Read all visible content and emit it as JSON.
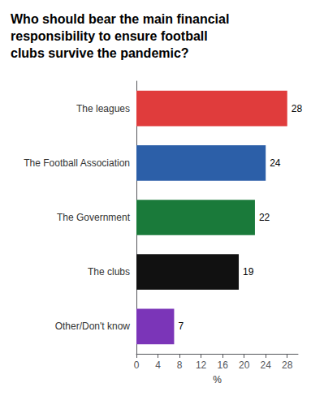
{
  "chart_data": {
    "type": "bar",
    "title": "Who should bear the main financial\nresponsibility to ensure football\nclubs survive the pandemic?",
    "categories": [
      "The leagues",
      "The Football Association",
      "The Government",
      "The clubs",
      "Other/Don't know"
    ],
    "values": [
      28,
      24,
      22,
      19,
      7
    ],
    "colors": [
      "#e03c3c",
      "#2c5fa8",
      "#1a7a3a",
      "#111111",
      "#7b35b8"
    ],
    "xlabel": "%",
    "xlim": [
      0,
      30
    ],
    "xticks": [
      0,
      4,
      8,
      12,
      16,
      20,
      24,
      28
    ],
    "orientation": "horizontal",
    "data_labels": true,
    "grid": false
  }
}
